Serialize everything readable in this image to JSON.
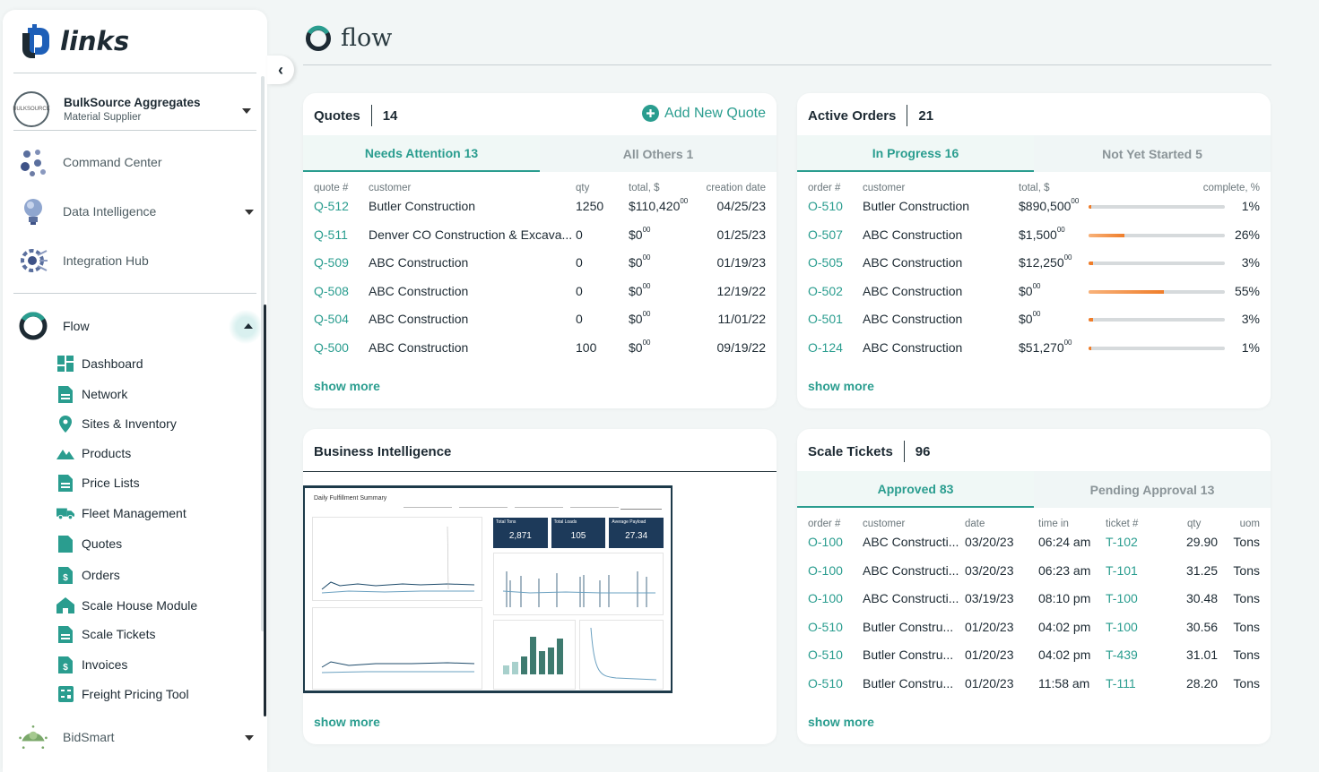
{
  "app": {
    "logo_text": "links"
  },
  "org": {
    "name": "BulkSource Aggregates",
    "subtitle": "Material Supplier",
    "avatar_text": "BULKSOURCE"
  },
  "sidebar": {
    "main_items": [
      {
        "label": "Command Center"
      },
      {
        "label": "Data Intelligence"
      },
      {
        "label": "Integration Hub"
      },
      {
        "label": "Flow"
      },
      {
        "label": "BidSmart"
      }
    ],
    "flow_items": [
      {
        "label": "Dashboard"
      },
      {
        "label": "Network"
      },
      {
        "label": "Sites & Inventory"
      },
      {
        "label": "Products"
      },
      {
        "label": "Price Lists"
      },
      {
        "label": "Fleet Management"
      },
      {
        "label": "Quotes"
      },
      {
        "label": "Orders"
      },
      {
        "label": "Scale House Module"
      },
      {
        "label": "Scale Tickets"
      },
      {
        "label": "Invoices"
      },
      {
        "label": "Freight Pricing Tool"
      }
    ]
  },
  "page": {
    "title": "flow"
  },
  "quotes": {
    "title": "Quotes",
    "count": "14",
    "add_label": "Add New Quote",
    "tabs": [
      "Needs Attention 13",
      "All Others 1"
    ],
    "headers": [
      "quote #",
      "customer",
      "qty",
      "total, $",
      "creation date"
    ],
    "rows": [
      {
        "id": "Q-512",
        "customer": "Butler Construction",
        "qty": "1250",
        "total": "$110,420",
        "cents": "00",
        "date": "04/25/23"
      },
      {
        "id": "Q-511",
        "customer": "Denver CO Construction & Excava...",
        "qty": "0",
        "total": "$0",
        "cents": "00",
        "date": "01/25/23"
      },
      {
        "id": "Q-509",
        "customer": "ABC Construction",
        "qty": "0",
        "total": "$0",
        "cents": "00",
        "date": "01/19/23"
      },
      {
        "id": "Q-508",
        "customer": "ABC Construction",
        "qty": "0",
        "total": "$0",
        "cents": "00",
        "date": "12/19/22"
      },
      {
        "id": "Q-504",
        "customer": "ABC Construction",
        "qty": "0",
        "total": "$0",
        "cents": "00",
        "date": "11/01/22"
      },
      {
        "id": "Q-500",
        "customer": "ABC Construction",
        "qty": "100",
        "total": "$0",
        "cents": "00",
        "date": "09/19/22"
      }
    ],
    "show_more": "show more"
  },
  "orders": {
    "title": "Active Orders",
    "count": "21",
    "tabs": [
      "In Progress 16",
      "Not Yet Started 5"
    ],
    "headers": [
      "order #",
      "customer",
      "total, $",
      "complete, %"
    ],
    "rows": [
      {
        "id": "O-510",
        "customer": "Butler Construction",
        "total": "$890,500",
        "cents": "00",
        "pct": "1%",
        "fraction": 0.01
      },
      {
        "id": "O-507",
        "customer": "ABC Construction",
        "total": "$1,500",
        "cents": "00",
        "pct": "26%",
        "fraction": 0.26
      },
      {
        "id": "O-505",
        "customer": "ABC Construction",
        "total": "$12,250",
        "cents": "00",
        "pct": "3%",
        "fraction": 0.03
      },
      {
        "id": "O-502",
        "customer": "ABC Construction",
        "total": "$0",
        "cents": "00",
        "pct": "55%",
        "fraction": 0.55
      },
      {
        "id": "O-501",
        "customer": "ABC Construction",
        "total": "$0",
        "cents": "00",
        "pct": "3%",
        "fraction": 0.03
      },
      {
        "id": "O-124",
        "customer": "ABC Construction",
        "total": "$51,270",
        "cents": "00",
        "pct": "1%",
        "fraction": 0.01
      }
    ],
    "show_more": "show more"
  },
  "bi": {
    "title": "Business Intelligence",
    "show_more": "show more",
    "thumb": {
      "title": "Daily Fulfillment Summary",
      "kpis": [
        {
          "label": "Total Tons",
          "value": "2,871"
        },
        {
          "label": "Total Loads",
          "value": "105"
        },
        {
          "label": "Average Payload",
          "value": "27.34"
        }
      ]
    }
  },
  "tickets": {
    "title": "Scale Tickets",
    "count": "96",
    "tabs": [
      "Approved 83",
      "Pending Approval 13"
    ],
    "headers": [
      "order #",
      "customer",
      "date",
      "time in",
      "ticket #",
      "qty",
      "uom"
    ],
    "rows": [
      {
        "order": "O-100",
        "customer": "ABC Constructi...",
        "date": "03/20/23",
        "time": "06:24 am",
        "ticket": "T-102",
        "qty": "29.90",
        "uom": "Tons"
      },
      {
        "order": "O-100",
        "customer": "ABC Constructi...",
        "date": "03/20/23",
        "time": "06:23 am",
        "ticket": "T-101",
        "qty": "31.25",
        "uom": "Tons"
      },
      {
        "order": "O-100",
        "customer": "ABC Constructi...",
        "date": "03/19/23",
        "time": "08:10 pm",
        "ticket": "T-100",
        "qty": "30.48",
        "uom": "Tons"
      },
      {
        "order": "O-510",
        "customer": "Butler Constru...",
        "date": "01/20/23",
        "time": "04:02 pm",
        "ticket": "T-100",
        "qty": "30.56",
        "uom": "Tons"
      },
      {
        "order": "O-510",
        "customer": "Butler Constru...",
        "date": "01/20/23",
        "time": "04:02 pm",
        "ticket": "T-439",
        "qty": "31.01",
        "uom": "Tons"
      },
      {
        "order": "O-510",
        "customer": "Butler Constru...",
        "date": "01/20/23",
        "time": "11:58 am",
        "ticket": "T-111",
        "qty": "28.20",
        "uom": "Tons"
      }
    ],
    "show_more": "show more"
  },
  "colors": {
    "accent": "#2a9d8f",
    "progress": "#ef7d2a"
  }
}
